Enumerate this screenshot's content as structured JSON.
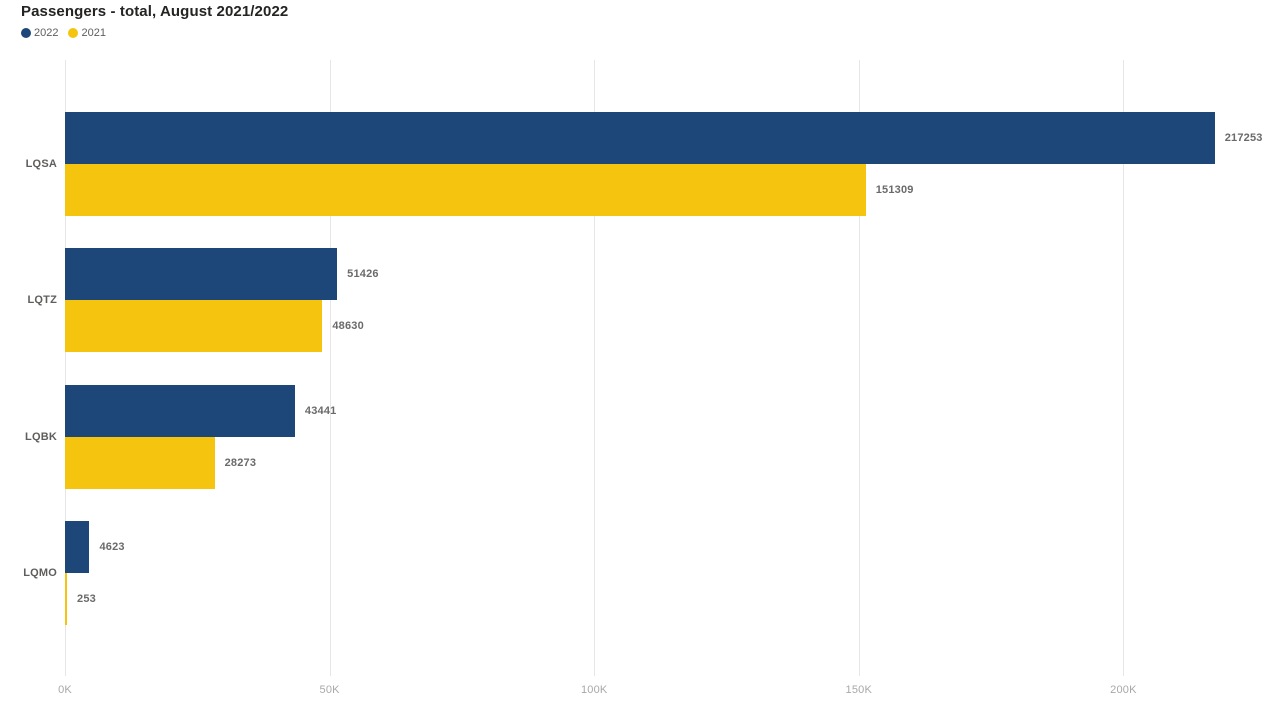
{
  "chart_data": {
    "type": "bar",
    "orientation": "horizontal",
    "title": "Passengers - total, August 2021/2022",
    "categories": [
      "LQSA",
      "LQTZ",
      "LQBK",
      "LQMO"
    ],
    "series": [
      {
        "name": "2022",
        "color": "#1C4778",
        "values": [
          217253,
          51426,
          43441,
          4623
        ]
      },
      {
        "name": "2021",
        "color": "#F5C40F",
        "values": [
          151309,
          48630,
          28273,
          253
        ]
      }
    ],
    "x_axis": {
      "tick_labels": [
        "0K",
        "50K",
        "100K",
        "150K",
        "200K"
      ],
      "tick_values": [
        0,
        50000,
        100000,
        150000,
        200000
      ],
      "min": 0,
      "max": 229000
    },
    "data_labels": true,
    "grid": true,
    "legend_position": "top-left",
    "colors": {
      "grid": "#e6e6e6",
      "value_label": "#6a6a6a",
      "category_label": "#605E5C",
      "axis_label": "#a8a8a8",
      "title": "#252423"
    }
  }
}
